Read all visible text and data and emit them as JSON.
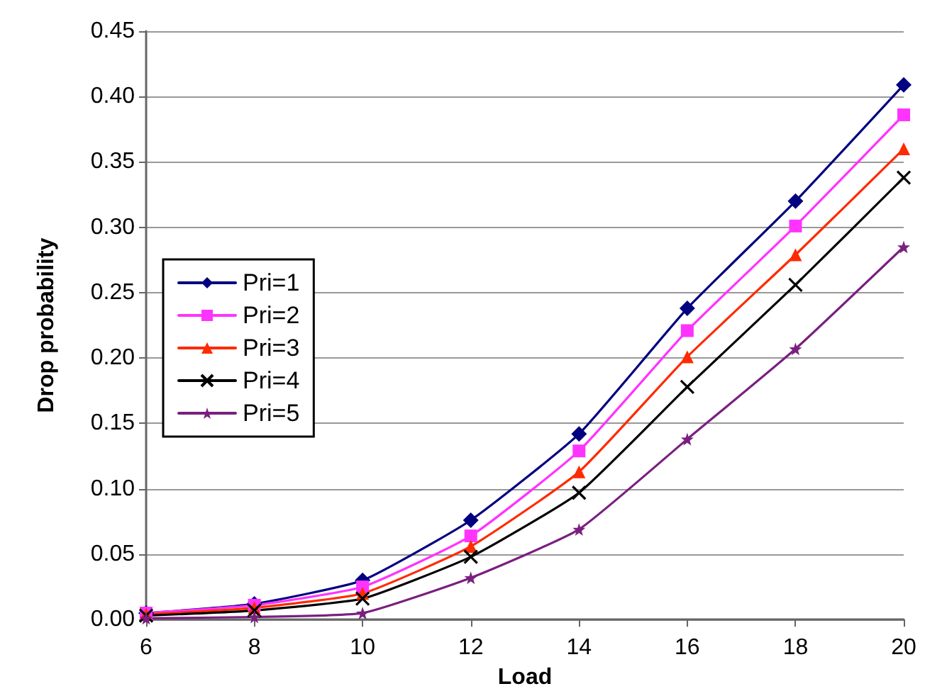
{
  "chart_data": {
    "type": "line",
    "xlabel": "Load",
    "ylabel": "Drop probability",
    "x": [
      6,
      8,
      10,
      12,
      14,
      16,
      18,
      20
    ],
    "xlim": [
      6,
      20
    ],
    "xticks": [
      6,
      8,
      10,
      12,
      14,
      16,
      18,
      20
    ],
    "ylim": [
      0,
      0.45
    ],
    "yticks": [
      {
        "value": 0,
        "label": "0.00"
      },
      {
        "value": 0.05,
        "label": "0.05"
      },
      {
        "value": 0.1,
        "label": "0.10"
      },
      {
        "value": 0.15,
        "label": "0.15"
      },
      {
        "value": 0.2,
        "label": "0.20"
      },
      {
        "value": 0.25,
        "label": "0.25"
      },
      {
        "value": 0.3,
        "label": "0.30"
      },
      {
        "value": 0.35,
        "label": "0.35"
      },
      {
        "value": 0.4,
        "label": "0.40"
      },
      {
        "value": 0.45,
        "label": "0.45"
      }
    ],
    "grid": "y",
    "legend": "left",
    "line_style": "solid",
    "series": [
      {
        "name": "Pri=1",
        "color": "#000080",
        "marker": "diamond",
        "values": [
          0.005,
          0.012,
          0.03,
          0.076,
          0.142,
          0.238,
          0.32,
          0.409
        ]
      },
      {
        "name": "Pri=2",
        "color": "#ff33ff",
        "marker": "square",
        "values": [
          0.005,
          0.011,
          0.025,
          0.064,
          0.129,
          0.221,
          0.301,
          0.386
        ]
      },
      {
        "name": "Pri=3",
        "color": "#ff2a00",
        "marker": "triangle",
        "values": [
          0.004,
          0.009,
          0.02,
          0.056,
          0.113,
          0.201,
          0.279,
          0.36
        ]
      },
      {
        "name": "Pri=4",
        "color": "#000000",
        "marker": "cross",
        "values": [
          0.003,
          0.007,
          0.016,
          0.048,
          0.097,
          0.178,
          0.256,
          0.338
        ]
      },
      {
        "name": "Pri=5",
        "color": "#7a1f7f",
        "marker": "star",
        "values": [
          0.001,
          0.002,
          0.005,
          0.032,
          0.069,
          0.138,
          0.207,
          0.285
        ]
      }
    ]
  }
}
